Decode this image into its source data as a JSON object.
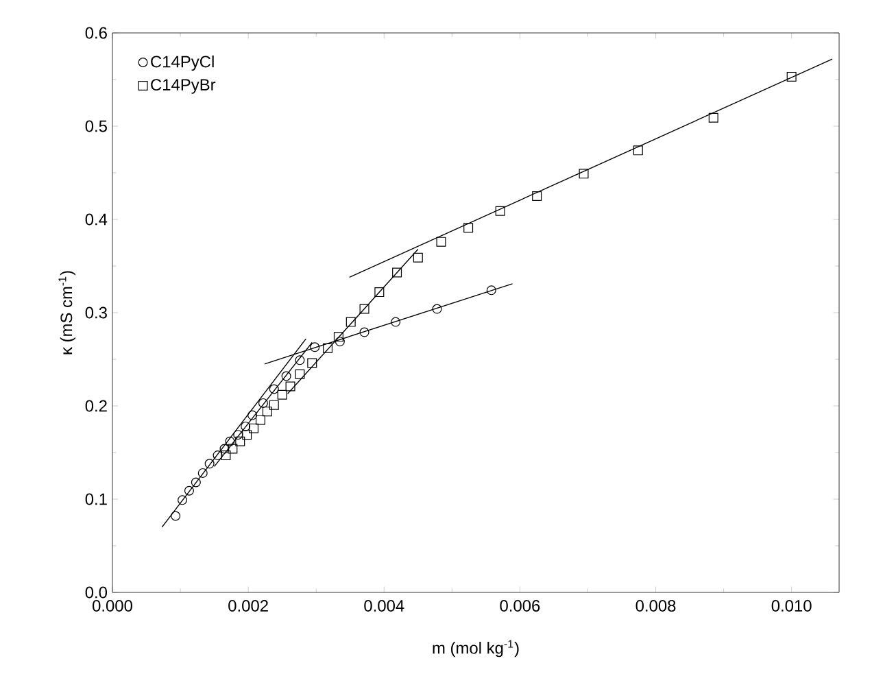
{
  "chart_data": {
    "type": "scatter",
    "xlabel": "m (mol kg$^{-1}$)",
    "ylabel": "κ (mS cm$^{-1}$)",
    "xlim": [
      0,
      0.0107
    ],
    "ylim": [
      0,
      0.6
    ],
    "xticks": [
      {
        "value": 0,
        "label": "0.000"
      },
      {
        "value": 0.002,
        "label": "0.002"
      },
      {
        "value": 0.004,
        "label": "0.004"
      },
      {
        "value": 0.006,
        "label": "0.006"
      },
      {
        "value": 0.008,
        "label": "0.008"
      },
      {
        "value": 0.01,
        "label": "0.010"
      }
    ],
    "yticks": [
      {
        "value": 0,
        "label": "0.0"
      },
      {
        "value": 0.1,
        "label": "0.1"
      },
      {
        "value": 0.2,
        "label": "0.2"
      },
      {
        "value": 0.3,
        "label": "0.3"
      },
      {
        "value": 0.4,
        "label": "0.4"
      },
      {
        "value": 0.5,
        "label": "0.5"
      },
      {
        "value": 0.6,
        "label": "0.6"
      }
    ],
    "legend": "top left",
    "grid": false,
    "series": [
      {
        "name": "C14PyCl",
        "color": "#000000",
        "marker": "circle",
        "x": [
          0.00093,
          0.00103,
          0.00113,
          0.00123,
          0.00133,
          0.00143,
          0.00155,
          0.00165,
          0.00173,
          0.00185,
          0.00196,
          0.00206,
          0.00222,
          0.00238,
          0.00256,
          0.00276,
          0.00298,
          0.00335,
          0.00371,
          0.00417,
          0.00478,
          0.00558
        ],
        "values": [
          0.082,
          0.099,
          0.109,
          0.118,
          0.128,
          0.138,
          0.147,
          0.154,
          0.162,
          0.169,
          0.178,
          0.19,
          0.203,
          0.218,
          0.232,
          0.249,
          0.263,
          0.269,
          0.279,
          0.29,
          0.304,
          0.324
        ]
      },
      {
        "name": "C14PyBr",
        "color": "#000000",
        "marker": "square",
        "x": [
          0.00167,
          0.00177,
          0.00188,
          0.00198,
          0.00208,
          0.00218,
          0.00228,
          0.00238,
          0.0025,
          0.00262,
          0.00276,
          0.00294,
          0.00317,
          0.00333,
          0.00351,
          0.00371,
          0.00393,
          0.00419,
          0.0045,
          0.00484,
          0.00524,
          0.00571,
          0.00625,
          0.00694,
          0.00774,
          0.00885,
          0.01
        ],
        "values": [
          0.147,
          0.154,
          0.162,
          0.169,
          0.176,
          0.185,
          0.194,
          0.201,
          0.212,
          0.221,
          0.234,
          0.246,
          0.262,
          0.274,
          0.29,
          0.304,
          0.322,
          0.343,
          0.359,
          0.376,
          0.391,
          0.409,
          0.425,
          0.449,
          0.474,
          0.509,
          0.553
        ]
      },
      {
        "type": "line",
        "color": "#000000",
        "x": [
          0.00073,
          0.00285
        ],
        "values": [
          0.07,
          0.272
        ]
      },
      {
        "type": "line",
        "color": "#000000",
        "x": [
          0.00224,
          0.00589
        ],
        "values": [
          0.245,
          0.331
        ]
      },
      {
        "type": "line",
        "color": "#000000",
        "x": [
          0.0015,
          0.00294
        ],
        "values": [
          0.135,
          0.268
        ]
      },
      {
        "type": "line",
        "color": "#000000",
        "x": [
          0.00258,
          0.0045
        ],
        "values": [
          0.213,
          0.368
        ]
      },
      {
        "type": "line",
        "color": "#000000",
        "x": [
          0.00349,
          0.0106
        ],
        "values": [
          0.338,
          0.572
        ]
      }
    ]
  }
}
